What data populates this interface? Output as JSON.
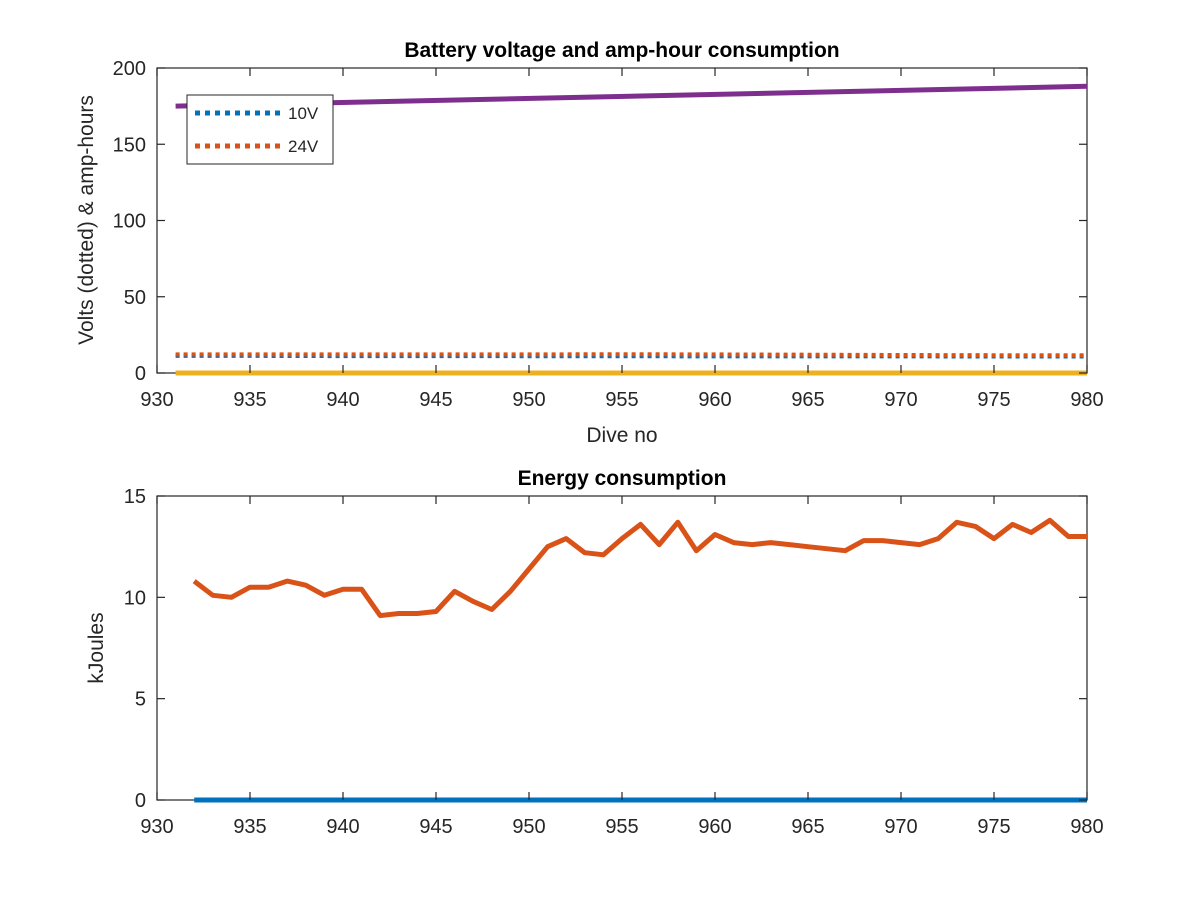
{
  "chart_data": [
    {
      "type": "line",
      "title": "Battery voltage and amp-hour consumption",
      "xlabel": "Dive no",
      "ylabel": "Volts (dotted) & amp-hours",
      "xlim": [
        930,
        980
      ],
      "ylim": [
        0,
        200
      ],
      "xticks": [
        930,
        935,
        940,
        945,
        950,
        955,
        960,
        965,
        970,
        975,
        980
      ],
      "yticks": [
        0,
        50,
        100,
        150,
        200
      ],
      "legend_position": "top-left",
      "grid": false,
      "series": [
        {
          "name": "10V",
          "color": "#0072BD",
          "style": "dotted",
          "in_legend": true,
          "x": [
            931,
            935,
            940,
            945,
            950,
            955,
            960,
            965,
            970,
            975,
            980
          ],
          "y": [
            11.2,
            11.2,
            11.1,
            11.1,
            11.0,
            11.0,
            10.9,
            10.9,
            10.9,
            10.8,
            10.8
          ]
        },
        {
          "name": "24V",
          "color": "#D95319",
          "style": "dotted",
          "in_legend": true,
          "x": [
            931,
            935,
            940,
            945,
            950,
            955,
            960,
            965,
            970,
            975,
            980
          ],
          "y": [
            12.2,
            12.2,
            12.2,
            12.2,
            12.2,
            12.3,
            12.2,
            12.0,
            11.8,
            11.7,
            11.6
          ]
        },
        {
          "color": "#7E2F8E",
          "style": "solid",
          "in_legend": false,
          "x": [
            931,
            980
          ],
          "y": [
            175,
            188
          ]
        },
        {
          "color": "#EDB120",
          "style": "solid",
          "in_legend": false,
          "x": [
            931,
            980
          ],
          "y": [
            0,
            0
          ]
        }
      ]
    },
    {
      "type": "line",
      "title": "Energy consumption",
      "xlabel": "",
      "ylabel": "kJoules",
      "xlim": [
        930,
        980
      ],
      "ylim": [
        0,
        15
      ],
      "xticks": [
        930,
        935,
        940,
        945,
        950,
        955,
        960,
        965,
        970,
        975,
        980
      ],
      "yticks": [
        0,
        5,
        10,
        15
      ],
      "grid": false,
      "series": [
        {
          "color": "#D95319",
          "style": "solid",
          "x": [
            932,
            933,
            934,
            935,
            936,
            937,
            938,
            939,
            940,
            941,
            942,
            943,
            944,
            945,
            946,
            947,
            948,
            949,
            950,
            951,
            952,
            953,
            954,
            955,
            956,
            957,
            958,
            959,
            960,
            961,
            962,
            963,
            964,
            965,
            966,
            967,
            968,
            969,
            970,
            971,
            972,
            973,
            974,
            975,
            976,
            977,
            978,
            979,
            980
          ],
          "y": [
            10.8,
            10.1,
            10.0,
            10.5,
            10.5,
            10.8,
            10.6,
            10.1,
            10.4,
            10.4,
            9.1,
            9.2,
            9.2,
            9.3,
            10.3,
            9.8,
            9.4,
            10.3,
            11.4,
            12.5,
            12.9,
            12.2,
            12.1,
            12.9,
            13.6,
            12.6,
            13.7,
            12.3,
            13.1,
            12.7,
            12.6,
            12.7,
            12.6,
            12.5,
            12.4,
            12.3,
            12.8,
            12.8,
            12.7,
            12.6,
            12.9,
            13.7,
            13.5,
            12.9,
            13.6,
            13.2,
            13.8,
            13.0,
            13.0
          ]
        },
        {
          "color": "#0072BD",
          "style": "solid",
          "x": [
            932,
            980
          ],
          "y": [
            0,
            0
          ]
        }
      ]
    }
  ]
}
